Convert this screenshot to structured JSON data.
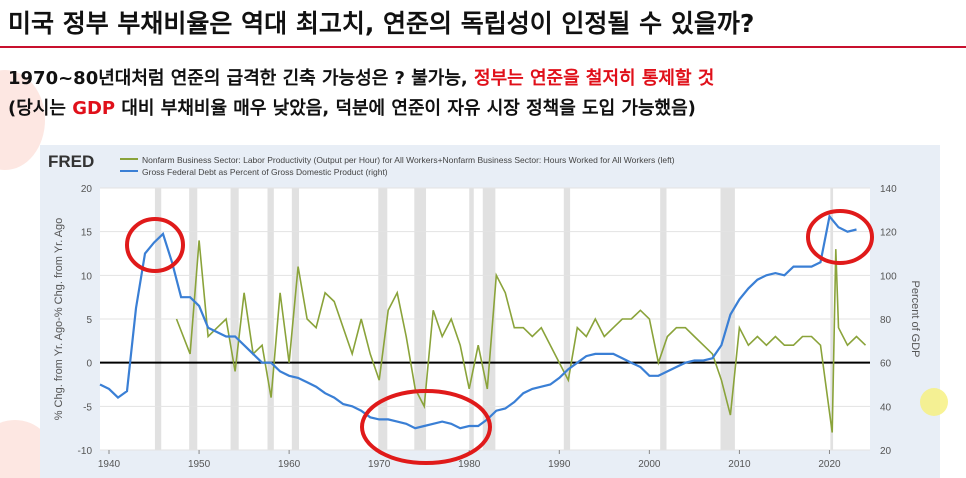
{
  "slide": {
    "title": "미국 정부 부채비율은 역대 최고치, 연준의 독립성이 인정될 수 있을까?",
    "lines": [
      [
        {
          "text": "1970~80년대처럼 연준의 급격한 긴축 가능성은 ? 불가능, ",
          "red": false
        },
        {
          "text": "정부는 연준을 철저히 통제할 것",
          "red": true
        }
      ],
      [
        {
          "text": "(당시는 ",
          "red": false
        },
        {
          "text": "GDP",
          "red": true
        },
        {
          "text": " 대비 부채비율 매우 낮았음, 덕분에 연준이 자유 시장 정책을 도입 가능했음)",
          "red": false
        }
      ]
    ]
  },
  "chart_data": {
    "type": "line",
    "brand": "FRED",
    "y_label": "% Chg. from Yr. Ago-% Chg. from Yr. Ago",
    "y2_label": "Percent of GDP",
    "xlim": [
      1939,
      2024.5
    ],
    "xticks": [
      1940,
      1950,
      1960,
      1970,
      1980,
      1990,
      2000,
      2010,
      2020
    ],
    "ylim": [
      -10,
      20
    ],
    "yticks": [
      -10,
      -5,
      0,
      5,
      10,
      15,
      20
    ],
    "y2lim": [
      20,
      140
    ],
    "y2ticks": [
      20,
      40,
      60,
      80,
      100,
      120,
      140
    ],
    "zero_line": 0,
    "grid": true,
    "recessions": [
      [
        1945.1,
        1945.8
      ],
      [
        1948.9,
        1949.8
      ],
      [
        1953.5,
        1954.4
      ],
      [
        1957.6,
        1958.3
      ],
      [
        1960.3,
        1961.1
      ],
      [
        1969.9,
        1970.9
      ],
      [
        1973.9,
        1975.2
      ],
      [
        1980.0,
        1980.5
      ],
      [
        1981.5,
        1982.9
      ],
      [
        1990.5,
        1991.2
      ],
      [
        2001.2,
        2001.9
      ],
      [
        2007.9,
        2009.5
      ],
      [
        2020.1,
        2020.4
      ]
    ],
    "series": [
      {
        "name": "Nonfarm Business Sector: Labor Productivity (Output per Hour) for All Workers+Nonfarm Business Sector: Hours Worked for All Workers (left)",
        "color": "#8aa33a",
        "x": [
          1947.5,
          1949,
          1950,
          1951,
          1952,
          1953,
          1954,
          1955,
          1956,
          1957,
          1958,
          1959,
          1960,
          1961,
          1962,
          1963,
          1964,
          1965,
          1966,
          1967,
          1968,
          1969,
          1970,
          1971,
          1972,
          1973,
          1974,
          1975,
          1976,
          1977,
          1978,
          1979,
          1980,
          1981,
          1982,
          1983,
          1984,
          1985,
          1986,
          1987,
          1988,
          1989,
          1990,
          1991,
          1992,
          1993,
          1994,
          1995,
          1996,
          1997,
          1998,
          1999,
          2000,
          2001,
          2002,
          2003,
          2004,
          2005,
          2006,
          2007,
          2008,
          2009,
          2010,
          2011,
          2012,
          2013,
          2014,
          2015,
          2016,
          2017,
          2018,
          2019,
          2020.3,
          2020.7,
          2021,
          2022,
          2023,
          2024
        ],
        "values": [
          5,
          1,
          14,
          3,
          4,
          5,
          -1,
          8,
          1,
          2,
          -4,
          8,
          0,
          11,
          5,
          4,
          8,
          7,
          4,
          1,
          5,
          1,
          -2,
          6,
          8,
          3,
          -3,
          -5,
          6,
          3,
          5,
          2,
          -3,
          2,
          -3,
          10,
          8,
          4,
          4,
          3,
          4,
          2,
          0,
          -2,
          4,
          3,
          5,
          3,
          4,
          5,
          5,
          6,
          5,
          0,
          3,
          4,
          4,
          3,
          2,
          1,
          -2,
          -6,
          4,
          2,
          3,
          2,
          3,
          2,
          2,
          3,
          3,
          2,
          -8,
          13,
          4,
          2,
          3,
          2
        ]
      },
      {
        "name": "Gross Federal Debt as Percent of Gross Domestic Product (right)",
        "color": "#3a7fd5",
        "axis": "y2",
        "x": [
          1939,
          1940,
          1941,
          1942,
          1943,
          1944,
          1945,
          1946,
          1947,
          1948,
          1949,
          1950,
          1951,
          1952,
          1953,
          1954,
          1955,
          1956,
          1957,
          1958,
          1959,
          1960,
          1961,
          1962,
          1963,
          1964,
          1965,
          1966,
          1967,
          1968,
          1969,
          1970,
          1971,
          1972,
          1973,
          1974,
          1975,
          1976,
          1977,
          1978,
          1979,
          1980,
          1981,
          1982,
          1983,
          1984,
          1985,
          1986,
          1987,
          1988,
          1989,
          1990,
          1991,
          1992,
          1993,
          1994,
          1995,
          1996,
          1997,
          1998,
          1999,
          2000,
          2001,
          2002,
          2003,
          2004,
          2005,
          2006,
          2007,
          2008,
          2009,
          2010,
          2011,
          2012,
          2013,
          2014,
          2015,
          2016,
          2017,
          2018,
          2019,
          2020,
          2021,
          2022,
          2023
        ],
        "values": [
          50,
          48,
          44,
          47,
          85,
          110,
          115,
          119,
          106,
          90,
          90,
          86,
          76,
          74,
          72,
          72,
          68,
          64,
          60,
          60,
          56,
          54,
          53,
          51,
          49,
          46,
          44,
          41,
          40,
          38,
          35,
          34,
          34,
          33,
          32,
          30,
          31,
          32,
          33,
          32,
          30,
          31,
          31,
          34,
          38,
          39,
          42,
          46,
          48,
          49,
          50,
          53,
          57,
          60,
          63,
          64,
          64,
          64,
          62,
          60,
          58,
          54,
          54,
          56,
          58,
          60,
          61,
          61,
          62,
          68,
          82,
          89,
          94,
          98,
          100,
          101,
          100,
          104,
          104,
          104,
          106,
          127,
          122,
          120,
          121
        ]
      }
    ]
  }
}
